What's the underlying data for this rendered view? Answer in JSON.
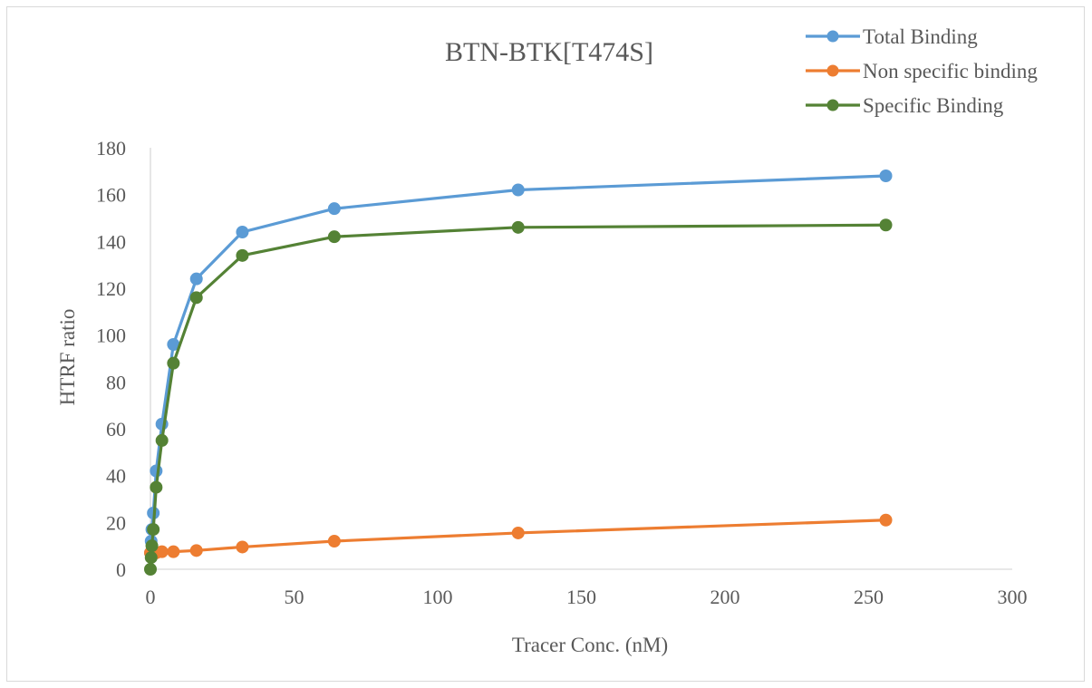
{
  "chart_data": {
    "type": "scatter",
    "title": "BTN-BTK[T474S]",
    "xlabel": "Tracer Conc. (nM)",
    "ylabel": "HTRF ratio",
    "xlim": [
      0,
      300
    ],
    "ylim": [
      0,
      180
    ],
    "xticks": [
      "0",
      "50",
      "100",
      "150",
      "200",
      "250",
      "300"
    ],
    "yticks": [
      "0",
      "20",
      "40",
      "60",
      "80",
      "100",
      "120",
      "140",
      "160",
      "180"
    ],
    "x_tick_values": [
      0,
      50,
      100,
      150,
      200,
      250,
      300
    ],
    "y_tick_values": [
      0,
      20,
      40,
      60,
      80,
      100,
      120,
      140,
      160,
      180
    ],
    "legend_position": "top-right",
    "grid": false,
    "series": [
      {
        "name": "Total Binding",
        "color": "#5b9bd5",
        "x": [
          0,
          0.25,
          0.5,
          1,
          2,
          4,
          8,
          16,
          32,
          64,
          128,
          256
        ],
        "y": [
          7,
          12,
          17,
          24,
          42,
          62,
          96,
          124,
          144,
          154,
          162,
          168
        ]
      },
      {
        "name": "Non specific binding",
        "color": "#ed7d31",
        "x": [
          0,
          0.25,
          0.5,
          1,
          2,
          4,
          8,
          16,
          32,
          64,
          128,
          256
        ],
        "y": [
          7,
          7,
          7,
          7,
          7,
          7.5,
          7.5,
          8,
          9.5,
          12,
          15.5,
          21
        ]
      },
      {
        "name": "Specific Binding",
        "color": "#548235",
        "x": [
          0,
          0.25,
          0.5,
          1,
          2,
          4,
          8,
          16,
          32,
          64,
          128,
          256
        ],
        "y": [
          0,
          5,
          10,
          17,
          35,
          55,
          88,
          116,
          134,
          142,
          146,
          147
        ]
      }
    ]
  }
}
